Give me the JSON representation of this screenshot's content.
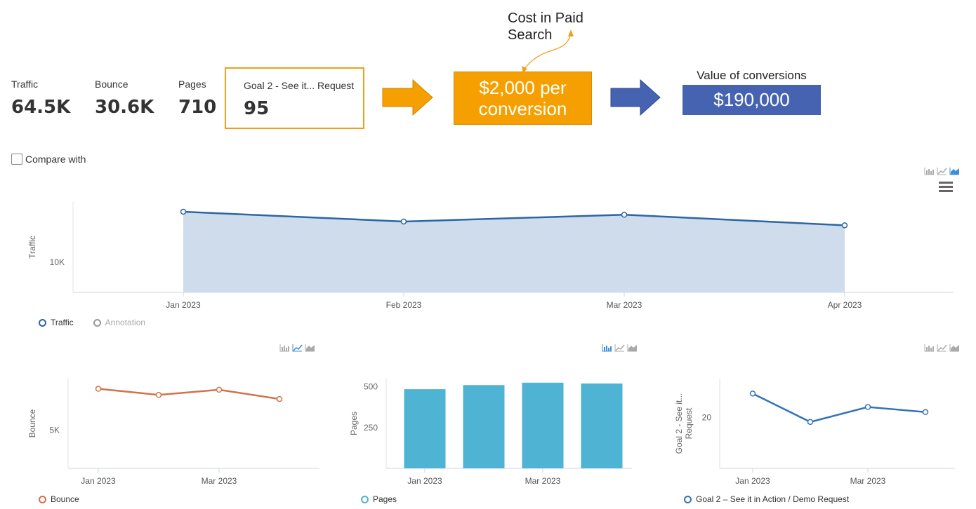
{
  "metrics": [
    {
      "label": "Traffic",
      "value": "64.5K"
    },
    {
      "label": "Bounce",
      "value": "30.6K"
    },
    {
      "label": "Pages",
      "value": "710"
    },
    {
      "label": "Goal 2 - See it... Request",
      "value": "95"
    }
  ],
  "annotations": {
    "cost_note": "Cost in Paid\nSearch",
    "cost_line1": "$2,000 per",
    "cost_line2": "conversion",
    "value_label": "Value of conversions",
    "value_amount": "$190,000"
  },
  "compare_label": "Compare with",
  "colors": {
    "traffic": "#2c66a4",
    "traffic_fill": "#cfdcec",
    "bounce": "#d0734a",
    "pages": "#4fb3d4",
    "goal": "#3573b9",
    "highlight": "#f0a017",
    "value_box": "#4663b1"
  },
  "chart_data": [
    {
      "type": "area",
      "categories": [
        "Jan 2023",
        "Feb 2023",
        "Mar 2023",
        "Apr 2023"
      ],
      "series": [
        {
          "name": "Traffic",
          "values": [
            16700,
            15400,
            16300,
            14900
          ]
        }
      ],
      "ylabel": "Traffic",
      "yticks": [
        "10K"
      ],
      "ylim": [
        6000,
        18000
      ],
      "legend": [
        "Traffic",
        "Annotation"
      ]
    },
    {
      "type": "line",
      "categories": [
        "Jan 2023",
        "Feb 2023",
        "Mar 2023",
        "Apr 2023"
      ],
      "xticks": [
        "Jan 2023",
        "Mar 2023"
      ],
      "series": [
        {
          "name": "Bounce",
          "values": [
            8050,
            7600,
            7980,
            7300
          ]
        }
      ],
      "ylabel": "Bounce",
      "yticks": [
        "5K"
      ],
      "ylim": [
        2200,
        8800
      ],
      "legend": [
        "Bounce"
      ]
    },
    {
      "type": "bar",
      "categories": [
        "Jan 2023",
        "Feb 2023",
        "Mar 2023",
        "Apr 2023"
      ],
      "xticks": [
        "Jan 2023",
        "Mar 2023"
      ],
      "series": [
        {
          "name": "Pages",
          "values": [
            485,
            510,
            525,
            520
          ]
        }
      ],
      "ylabel": "Pages",
      "yticks": [
        "250",
        "500"
      ],
      "ylim": [
        0,
        550
      ],
      "legend": [
        "Pages"
      ]
    },
    {
      "type": "line",
      "categories": [
        "Jan 2023",
        "Feb 2023",
        "Mar 2023",
        "Apr 2023"
      ],
      "xticks": [
        "Jan 2023",
        "Mar 2023"
      ],
      "series": [
        {
          "name": "Goal 2 – See it in Action / Demo Request",
          "values": [
            28,
            18.5,
            23.5,
            21.8
          ]
        }
      ],
      "ylabel": "Goal 2 - See it... Request",
      "yticks": [
        "20"
      ],
      "ylim": [
        3,
        33
      ],
      "legend": [
        "Goal 2 – See it in Action / Demo Request"
      ]
    }
  ]
}
